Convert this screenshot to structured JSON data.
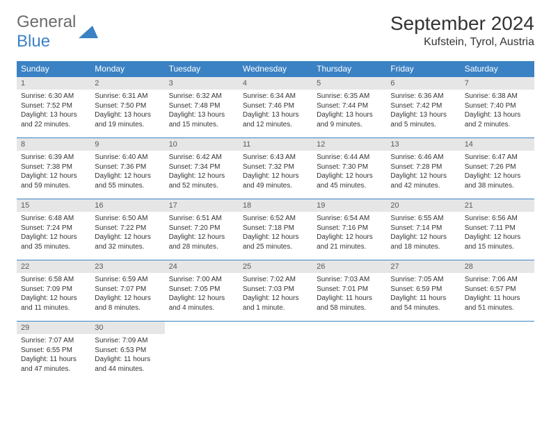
{
  "logo": {
    "general": "General",
    "blue": "Blue"
  },
  "title": "September 2024",
  "location": "Kufstein, Tyrol, Austria",
  "colors": {
    "header_bg": "#3b82c4",
    "daynum_bg": "#e6e6e6",
    "text": "#333333",
    "logo_gray": "#6b6b6b"
  },
  "weekdays": [
    "Sunday",
    "Monday",
    "Tuesday",
    "Wednesday",
    "Thursday",
    "Friday",
    "Saturday"
  ],
  "days": [
    {
      "n": 1,
      "sunrise": "6:30 AM",
      "sunset": "7:52 PM",
      "daylight": "13 hours and 22 minutes."
    },
    {
      "n": 2,
      "sunrise": "6:31 AM",
      "sunset": "7:50 PM",
      "daylight": "13 hours and 19 minutes."
    },
    {
      "n": 3,
      "sunrise": "6:32 AM",
      "sunset": "7:48 PM",
      "daylight": "13 hours and 15 minutes."
    },
    {
      "n": 4,
      "sunrise": "6:34 AM",
      "sunset": "7:46 PM",
      "daylight": "13 hours and 12 minutes."
    },
    {
      "n": 5,
      "sunrise": "6:35 AM",
      "sunset": "7:44 PM",
      "daylight": "13 hours and 9 minutes."
    },
    {
      "n": 6,
      "sunrise": "6:36 AM",
      "sunset": "7:42 PM",
      "daylight": "13 hours and 5 minutes."
    },
    {
      "n": 7,
      "sunrise": "6:38 AM",
      "sunset": "7:40 PM",
      "daylight": "13 hours and 2 minutes."
    },
    {
      "n": 8,
      "sunrise": "6:39 AM",
      "sunset": "7:38 PM",
      "daylight": "12 hours and 59 minutes."
    },
    {
      "n": 9,
      "sunrise": "6:40 AM",
      "sunset": "7:36 PM",
      "daylight": "12 hours and 55 minutes."
    },
    {
      "n": 10,
      "sunrise": "6:42 AM",
      "sunset": "7:34 PM",
      "daylight": "12 hours and 52 minutes."
    },
    {
      "n": 11,
      "sunrise": "6:43 AM",
      "sunset": "7:32 PM",
      "daylight": "12 hours and 49 minutes."
    },
    {
      "n": 12,
      "sunrise": "6:44 AM",
      "sunset": "7:30 PM",
      "daylight": "12 hours and 45 minutes."
    },
    {
      "n": 13,
      "sunrise": "6:46 AM",
      "sunset": "7:28 PM",
      "daylight": "12 hours and 42 minutes."
    },
    {
      "n": 14,
      "sunrise": "6:47 AM",
      "sunset": "7:26 PM",
      "daylight": "12 hours and 38 minutes."
    },
    {
      "n": 15,
      "sunrise": "6:48 AM",
      "sunset": "7:24 PM",
      "daylight": "12 hours and 35 minutes."
    },
    {
      "n": 16,
      "sunrise": "6:50 AM",
      "sunset": "7:22 PM",
      "daylight": "12 hours and 32 minutes."
    },
    {
      "n": 17,
      "sunrise": "6:51 AM",
      "sunset": "7:20 PM",
      "daylight": "12 hours and 28 minutes."
    },
    {
      "n": 18,
      "sunrise": "6:52 AM",
      "sunset": "7:18 PM",
      "daylight": "12 hours and 25 minutes."
    },
    {
      "n": 19,
      "sunrise": "6:54 AM",
      "sunset": "7:16 PM",
      "daylight": "12 hours and 21 minutes."
    },
    {
      "n": 20,
      "sunrise": "6:55 AM",
      "sunset": "7:14 PM",
      "daylight": "12 hours and 18 minutes."
    },
    {
      "n": 21,
      "sunrise": "6:56 AM",
      "sunset": "7:11 PM",
      "daylight": "12 hours and 15 minutes."
    },
    {
      "n": 22,
      "sunrise": "6:58 AM",
      "sunset": "7:09 PM",
      "daylight": "12 hours and 11 minutes."
    },
    {
      "n": 23,
      "sunrise": "6:59 AM",
      "sunset": "7:07 PM",
      "daylight": "12 hours and 8 minutes."
    },
    {
      "n": 24,
      "sunrise": "7:00 AM",
      "sunset": "7:05 PM",
      "daylight": "12 hours and 4 minutes."
    },
    {
      "n": 25,
      "sunrise": "7:02 AM",
      "sunset": "7:03 PM",
      "daylight": "12 hours and 1 minute."
    },
    {
      "n": 26,
      "sunrise": "7:03 AM",
      "sunset": "7:01 PM",
      "daylight": "11 hours and 58 minutes."
    },
    {
      "n": 27,
      "sunrise": "7:05 AM",
      "sunset": "6:59 PM",
      "daylight": "11 hours and 54 minutes."
    },
    {
      "n": 28,
      "sunrise": "7:06 AM",
      "sunset": "6:57 PM",
      "daylight": "11 hours and 51 minutes."
    },
    {
      "n": 29,
      "sunrise": "7:07 AM",
      "sunset": "6:55 PM",
      "daylight": "11 hours and 47 minutes."
    },
    {
      "n": 30,
      "sunrise": "7:09 AM",
      "sunset": "6:53 PM",
      "daylight": "11 hours and 44 minutes."
    }
  ],
  "grid": {
    "start_weekday": 0,
    "total_cells": 35
  }
}
